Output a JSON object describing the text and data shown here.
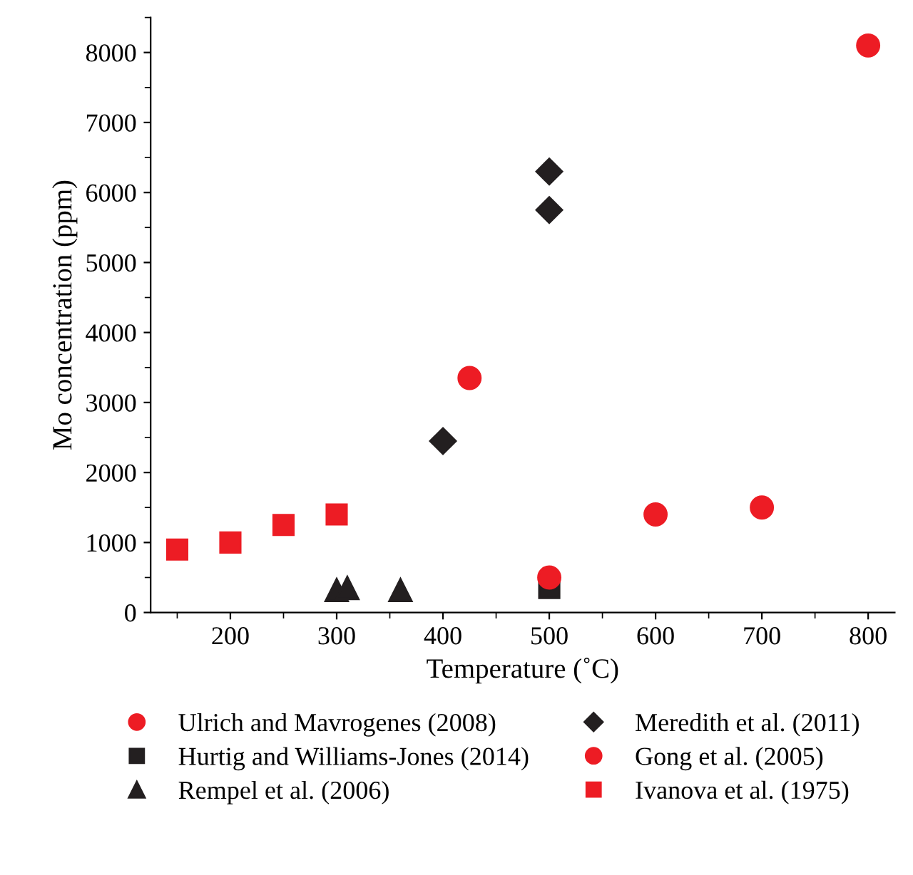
{
  "chart_data": {
    "type": "scatter",
    "xlabel": "Temperature (˚C)",
    "ylabel": "Mo concentration (ppm)",
    "xlim": [
      125,
      825
    ],
    "xticks": [
      200,
      300,
      400,
      500,
      600,
      700,
      800
    ],
    "ylim": [
      0,
      8500
    ],
    "yticks": [
      0,
      1000,
      2000,
      3000,
      4000,
      5000,
      6000,
      7000,
      8000
    ],
    "grid": false,
    "legend": "bottom",
    "series": [
      {
        "name": "Ulrich and Mavrogenes (2008)",
        "color": "#ed1c24",
        "marker": "circle",
        "x": [
          500,
          600,
          700,
          800
        ],
        "values": [
          500,
          1400,
          1500,
          8100
        ]
      },
      {
        "name": "Hurtig and Williams-Jones (2014)",
        "color": "#231f20",
        "marker": "square",
        "x": [
          500
        ],
        "values": [
          350
        ]
      },
      {
        "name": "Rempel et al. (2006)",
        "color": "#231f20",
        "marker": "triangle",
        "x": [
          300,
          310,
          360
        ],
        "values": [
          320,
          350,
          320
        ]
      },
      {
        "name": "Meredith et al. (2011)",
        "color": "#231f20",
        "marker": "diamond",
        "x": [
          400,
          500,
          500
        ],
        "values": [
          2450,
          5750,
          6300
        ]
      },
      {
        "name": "Gong et al. (2005)",
        "color": "#ed1c24",
        "marker": "circle",
        "x": [
          425
        ],
        "values": [
          3350
        ]
      },
      {
        "name": "Ivanova et al. (1975)",
        "color": "#ed1c24",
        "marker": "square",
        "x": [
          150,
          200,
          250,
          300
        ],
        "values": [
          900,
          1000,
          1250,
          1400
        ]
      }
    ]
  }
}
